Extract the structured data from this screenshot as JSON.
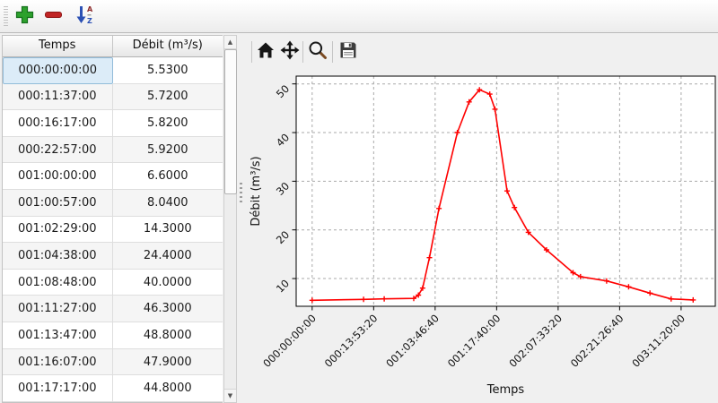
{
  "toolbar": {
    "buttons": [
      {
        "name": "add-row",
        "icon": "plus-icon"
      },
      {
        "name": "remove-row",
        "icon": "minus-icon"
      },
      {
        "name": "sort-rows",
        "icon": "sort-az-icon"
      }
    ]
  },
  "table": {
    "columns": [
      "Temps",
      "Débit (m³/s)"
    ],
    "rows": [
      [
        "000:00:00:00",
        "5.5300"
      ],
      [
        "000:11:37:00",
        "5.7200"
      ],
      [
        "000:16:17:00",
        "5.8200"
      ],
      [
        "000:22:57:00",
        "5.9200"
      ],
      [
        "001:00:00:00",
        "6.6000"
      ],
      [
        "001:00:57:00",
        "8.0400"
      ],
      [
        "001:02:29:00",
        "14.3000"
      ],
      [
        "001:04:38:00",
        "24.4000"
      ],
      [
        "001:08:48:00",
        "40.0000"
      ],
      [
        "001:11:27:00",
        "46.3000"
      ],
      [
        "001:13:47:00",
        "48.8000"
      ],
      [
        "001:16:07:00",
        "47.9000"
      ],
      [
        "001:17:17:00",
        "44.8000"
      ]
    ],
    "selected_cell": {
      "row": 0,
      "col": 0
    }
  },
  "chart_toolbar": {
    "icons": [
      "home-icon",
      "pan-icon",
      "zoom-icon",
      "save-icon"
    ]
  },
  "chart_data": {
    "type": "line",
    "title": "",
    "xlabel": "Temps",
    "ylabel": "Débit (m³/s)",
    "x_tick_values": [
      0,
      50000,
      100000,
      150000,
      200000,
      250000,
      300000
    ],
    "x_tick_labels": [
      "000:00:00:00",
      "000:13:53:20",
      "001:03:46:40",
      "001:17:40:00",
      "002:07:33:20",
      "002:21:26:40",
      "003:11:20:00"
    ],
    "y_ticks": [
      10,
      20,
      30,
      40,
      50
    ],
    "xlim": [
      -13000,
      327800
    ],
    "ylim": [
      4.3,
      51.6
    ],
    "grid": true,
    "legend": "none",
    "line_color": "#ff0000",
    "series": [
      {
        "name": "Débit",
        "x": [
          0,
          41820,
          58620,
          82620,
          86400,
          89820,
          95340,
          103080,
          118080,
          127620,
          136020,
          144420,
          148620,
          158500,
          164500,
          175800,
          190500,
          212100,
          218200,
          239400,
          257300,
          274700,
          291900,
          309800
        ],
        "y": [
          5.53,
          5.72,
          5.82,
          5.92,
          6.6,
          8.04,
          14.3,
          24.4,
          40.0,
          46.3,
          48.8,
          47.9,
          44.8,
          28.0,
          24.6,
          19.5,
          15.9,
          11.2,
          10.4,
          9.5,
          8.3,
          7.0,
          5.8,
          5.6
        ]
      }
    ]
  },
  "colors": {
    "line": "#ff0000",
    "selection_bg": "#dcecf8",
    "selection_border": "#92bcd9",
    "add_green": "#2da12d",
    "remove_red": "#c12525",
    "sort_blue": "#2b50b4",
    "grid_gray": "#a9a9a9"
  }
}
